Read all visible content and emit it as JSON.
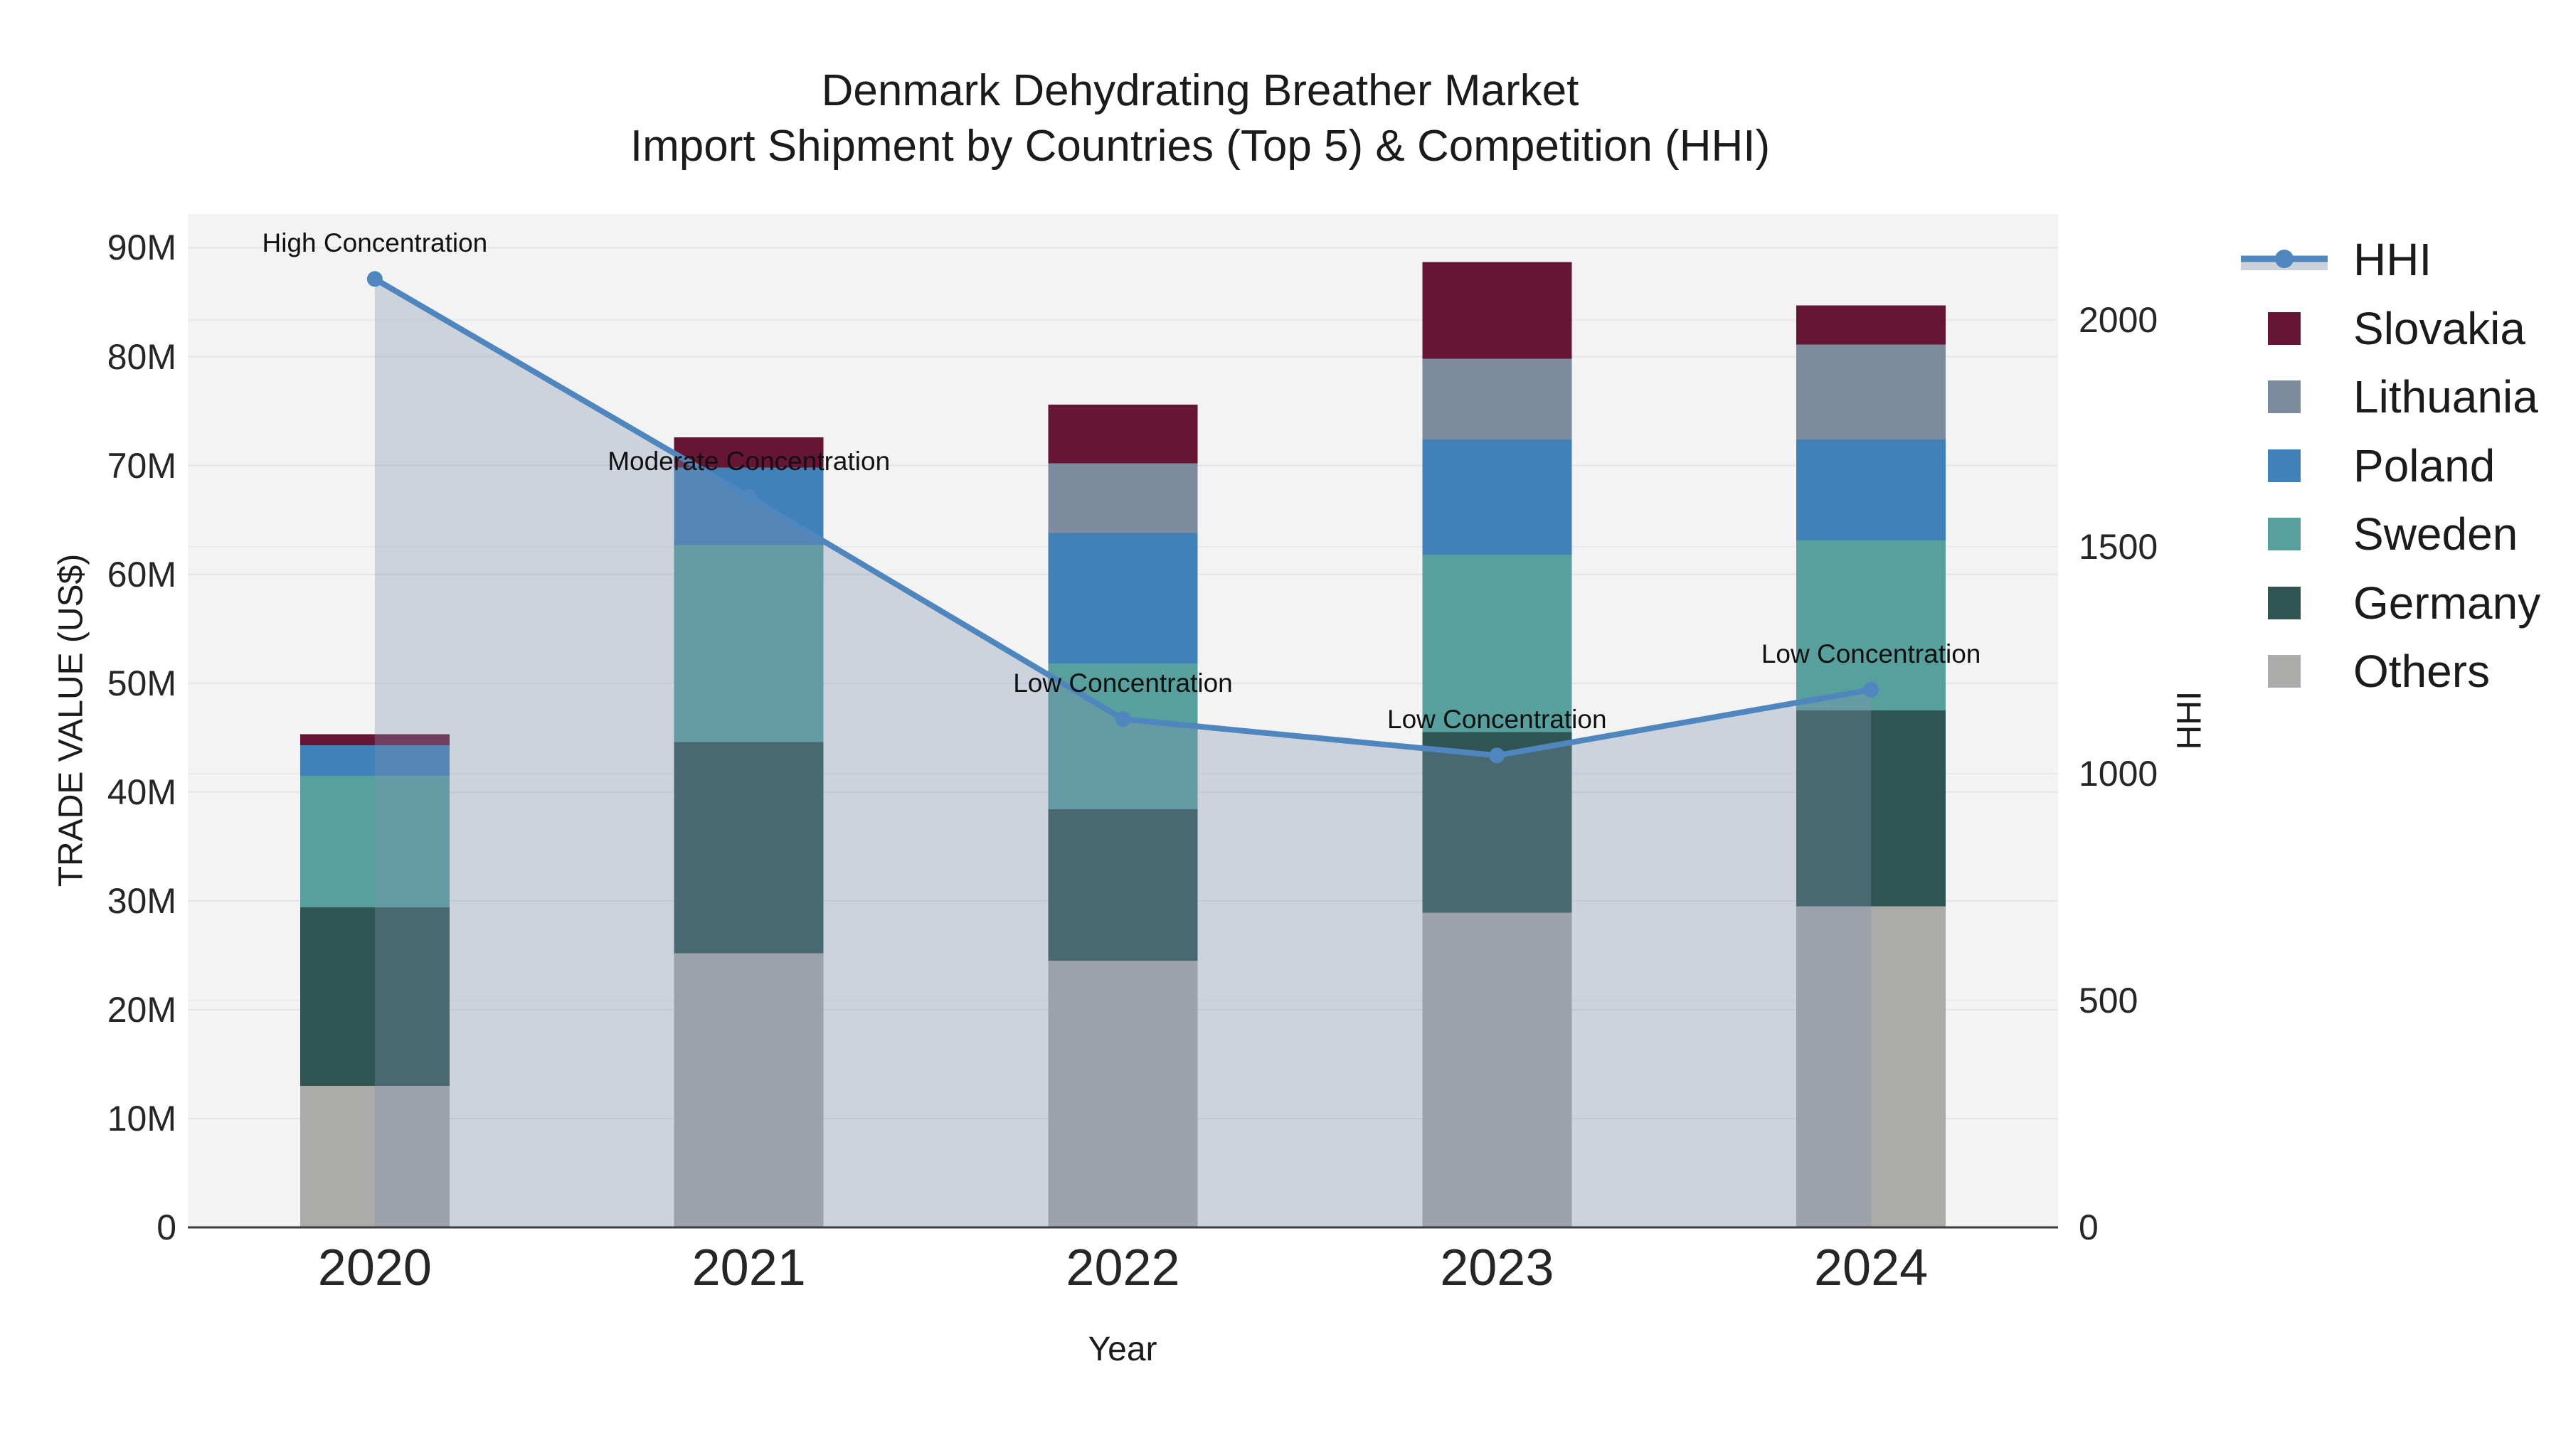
{
  "title": {
    "line1": "Denmark Dehydrating Breather Market",
    "line2": "Import Shipment by Countries (Top 5) & Competition (HHI)"
  },
  "axes": {
    "y_left": {
      "title": "TRADE VALUE (US$)",
      "tick_labels": [
        "0",
        "10M",
        "20M",
        "30M",
        "40M",
        "50M",
        "60M",
        "70M",
        "80M",
        "90M"
      ]
    },
    "y_right": {
      "title": "HHI",
      "tick_labels": [
        "0",
        "500",
        "1000",
        "1500",
        "2000"
      ]
    },
    "x": {
      "title": "Year",
      "tick_labels": [
        "2020",
        "2021",
        "2022",
        "2023",
        "2024"
      ]
    }
  },
  "legend": {
    "items": [
      {
        "label": "HHI",
        "type": "line",
        "color": "#4e86bd",
        "fill_sample": "#ccd2dc"
      },
      {
        "label": "Slovakia",
        "type": "square",
        "color": "#671535"
      },
      {
        "label": "Lithuania",
        "type": "square",
        "color": "#7d8b9e"
      },
      {
        "label": "Poland",
        "type": "square",
        "color": "#4181ba"
      },
      {
        "label": "Sweden",
        "type": "square",
        "color": "#58a09e"
      },
      {
        "label": "Germany",
        "type": "square",
        "color": "#2f5452"
      },
      {
        "label": "Others",
        "type": "square",
        "color": "#ababa9"
      }
    ]
  },
  "chart_data": {
    "type": "combo_stacked_bar_and_line",
    "title": "Denmark Dehydrating Breather Market — Import Shipment by Countries (Top 5) & Competition (HHI)",
    "categories": [
      "2020",
      "2021",
      "2022",
      "2023",
      "2024"
    ],
    "xlabel": "Year",
    "ylabel": "TRADE VALUE (US$)",
    "y2label": "HHI",
    "ylim": [
      0,
      93.1
    ],
    "y2lim": [
      0,
      2233
    ],
    "grid": true,
    "legend_position": "top-right",
    "bar_unit": "M US$",
    "stack_order_bottom_to_top": [
      "Others",
      "Germany",
      "Sweden",
      "Poland",
      "Lithuania",
      "Slovakia"
    ],
    "series": [
      {
        "name": "Others",
        "type": "bar",
        "color": "#ababa9",
        "values": [
          13.0,
          25.2,
          24.5,
          28.9,
          29.5
        ]
      },
      {
        "name": "Germany",
        "type": "bar",
        "color": "#2f5452",
        "values": [
          16.4,
          19.4,
          13.9,
          16.6,
          18.0
        ]
      },
      {
        "name": "Sweden",
        "type": "bar",
        "color": "#58a09e",
        "values": [
          12.1,
          18.1,
          13.4,
          16.3,
          15.6
        ]
      },
      {
        "name": "Poland",
        "type": "bar",
        "color": "#4181ba",
        "values": [
          2.8,
          7.1,
          12.0,
          10.6,
          9.3
        ]
      },
      {
        "name": "Lithuania",
        "type": "bar",
        "color": "#7d8b9e",
        "values": [
          0,
          0,
          6.4,
          7.4,
          8.7
        ]
      },
      {
        "name": "Slovakia",
        "type": "bar",
        "color": "#671535",
        "values": [
          1.0,
          2.8,
          5.4,
          8.9,
          3.6
        ]
      }
    ],
    "bar_totals": [
      45.3,
      72.6,
      75.6,
      88.7,
      84.7
    ],
    "hhi_line": {
      "name": "HHI",
      "type": "line",
      "axis": "y2",
      "color": "#4e86bd",
      "area_fill": "rgba(128,146,176,0.33)",
      "values": [
        2090,
        1610,
        1120,
        1040,
        1185
      ]
    },
    "annotations": [
      {
        "x": "2020",
        "text": "High Concentration"
      },
      {
        "x": "2021",
        "text": "Moderate Concentration"
      },
      {
        "x": "2022",
        "text": "Low Concentration"
      },
      {
        "x": "2023",
        "text": "Low Concentration"
      },
      {
        "x": "2024",
        "text": "Low Concentration"
      }
    ],
    "colors": {
      "plot_background": "#f3f3f3",
      "gridline": "#e4e4e6",
      "gridline_secondary": "#eaeaec",
      "axis_line": "#3c3c3c",
      "text": "#1b1b1b"
    }
  }
}
